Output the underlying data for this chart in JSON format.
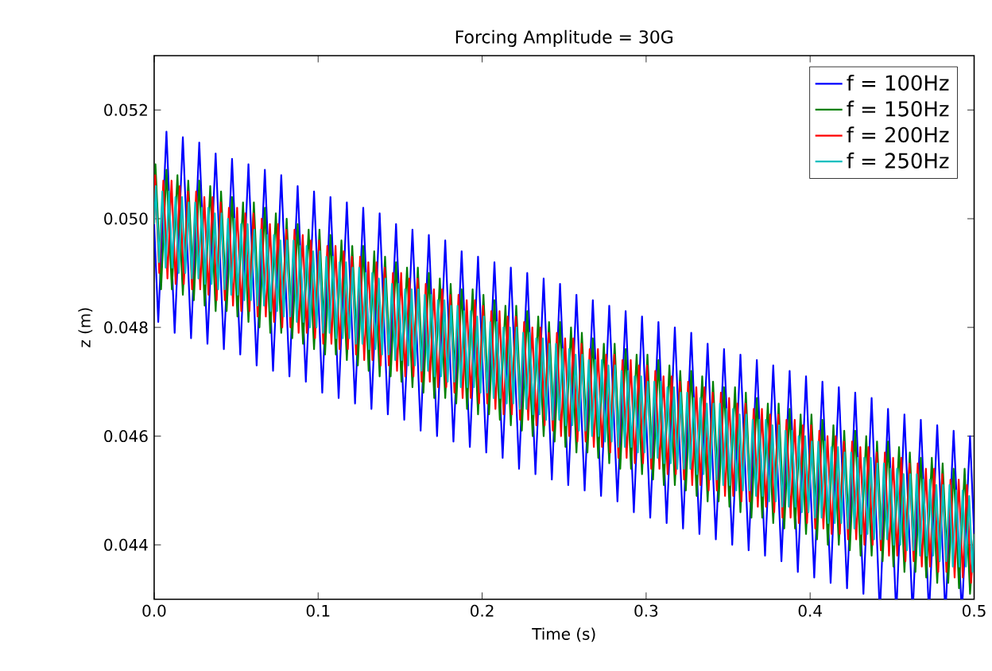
{
  "chart_data": {
    "type": "line",
    "title": "Forcing Amplitude = 30G",
    "xlabel": "Time (s)",
    "ylabel": "z (m)",
    "xlim": [
      0,
      0.5
    ],
    "ylim": [
      0.043,
      0.053
    ],
    "xticks": [
      {
        "value": 0,
        "label": "0.0"
      },
      {
        "value": 0.1,
        "label": "0.1"
      },
      {
        "value": 0.2,
        "label": "0.2"
      },
      {
        "value": 0.3,
        "label": "0.3"
      },
      {
        "value": 0.4,
        "label": "0.4"
      },
      {
        "value": 0.5,
        "label": "0.5"
      }
    ],
    "yticks": [
      {
        "value": 0.044,
        "label": "0.044"
      },
      {
        "value": 0.046,
        "label": "0.046"
      },
      {
        "value": 0.048,
        "label": "0.048"
      },
      {
        "value": 0.05,
        "label": "0.050"
      },
      {
        "value": 0.052,
        "label": "0.052"
      }
    ],
    "legend": "top right",
    "marker": "none",
    "line_style": "solid",
    "series": [
      {
        "name": "f = 100Hz",
        "color": "#0000ff",
        "x": [
          0,
          0.0025,
          0.0075,
          0.0125,
          0.0175,
          0.0225,
          0.0275,
          0.0325,
          0.0375,
          0.0425,
          0.0475,
          0.0525,
          0.0575,
          0.0625,
          0.0675,
          0.0725,
          0.0775,
          0.0825,
          0.0875,
          0.0925,
          0.0975,
          0.1025,
          0.1075,
          0.1125,
          0.1175,
          0.1225,
          0.1275,
          0.1325,
          0.1375,
          0.1425,
          0.1475,
          0.1525,
          0.1575,
          0.1625,
          0.1675,
          0.1725,
          0.1775,
          0.1825,
          0.1875,
          0.1925,
          0.1975,
          0.2025,
          0.2075,
          0.2125,
          0.2175,
          0.2225,
          0.2275,
          0.2325,
          0.2375,
          0.2425,
          0.2475,
          0.2525,
          0.2575,
          0.2625,
          0.2675,
          0.2725,
          0.2775,
          0.2825,
          0.2875,
          0.2925,
          0.2975,
          0.3025,
          0.3075,
          0.3125,
          0.3175,
          0.3225,
          0.3275,
          0.3325,
          0.3375,
          0.3425,
          0.3475,
          0.3525,
          0.3575,
          0.3625,
          0.3675,
          0.3725,
          0.3775,
          0.3825,
          0.3875,
          0.3925,
          0.3975,
          0.4025,
          0.4075,
          0.4125,
          0.4175,
          0.4225,
          0.4275,
          0.4325,
          0.4375,
          0.4425,
          0.4475,
          0.4525,
          0.4575,
          0.4625,
          0.4675,
          0.4725,
          0.4775,
          0.4825,
          0.4875,
          0.4925,
          0.4975,
          0.5
        ],
        "values": [
          0.0499,
          0.0481,
          0.0516,
          0.0479,
          0.0515,
          0.0478,
          0.0514,
          0.0477,
          0.0512,
          0.0476,
          0.0511,
          0.0475,
          0.051,
          0.0473,
          0.0509,
          0.0472,
          0.0508,
          0.0471,
          0.0506,
          0.047,
          0.0505,
          0.0468,
          0.0504,
          0.0467,
          0.0503,
          0.0466,
          0.0502,
          0.0465,
          0.0501,
          0.0464,
          0.0499,
          0.0463,
          0.0498,
          0.0461,
          0.0497,
          0.046,
          0.0496,
          0.0459,
          0.0494,
          0.0458,
          0.0493,
          0.0457,
          0.0492,
          0.0456,
          0.0491,
          0.0454,
          0.049,
          0.0453,
          0.0489,
          0.0452,
          0.0488,
          0.0451,
          0.0486,
          0.045,
          0.0485,
          0.0449,
          0.0484,
          0.0448,
          0.0483,
          0.0446,
          0.0482,
          0.0445,
          0.0481,
          0.0444,
          0.048,
          0.0443,
          0.0479,
          0.0442,
          0.0477,
          0.0441,
          0.0476,
          0.044,
          0.0475,
          0.0439,
          0.0474,
          0.0438,
          0.0473,
          0.0437,
          0.0472,
          0.0435,
          0.0471,
          0.0434,
          0.047,
          0.0433,
          0.0469,
          0.0432,
          0.0468,
          0.0431,
          0.0467,
          null,
          0.0465,
          null,
          0.0464,
          null,
          0.0463,
          null,
          0.0462,
          null,
          0.0461,
          null,
          0.046,
          0.0442
        ]
      },
      {
        "name": "f = 150Hz",
        "color": "#008000",
        "x": [
          0,
          0.0008,
          0.0042,
          0.0075,
          0.0108,
          0.0142,
          0.0175,
          0.0208,
          0.0242,
          0.0275,
          0.0308,
          0.0342,
          0.0375,
          0.0408,
          0.0442,
          0.0475,
          0.0508,
          0.0542,
          0.0575,
          0.0608,
          0.0642,
          0.0675,
          0.0708,
          0.0742,
          0.0775,
          0.0808,
          0.0842,
          0.0875,
          0.0908,
          0.0942,
          0.0975,
          0.1008,
          0.1042,
          0.1075,
          0.1108,
          0.1142,
          0.1175,
          0.1208,
          0.1242,
          0.1275,
          0.1308,
          0.1342,
          0.1375,
          0.1408,
          0.1442,
          0.1475,
          0.1508,
          0.1542,
          0.1575,
          0.1608,
          0.1642,
          0.1675,
          0.1708,
          0.1742,
          0.1775,
          0.1808,
          0.1842,
          0.1875,
          0.1908,
          0.1942,
          0.1975,
          0.2008,
          0.2042,
          0.2075,
          0.2108,
          0.2142,
          0.2175,
          0.2208,
          0.2242,
          0.2275,
          0.2308,
          0.2342,
          0.2375,
          0.2408,
          0.2442,
          0.2475,
          0.2508,
          0.2542,
          0.2575,
          0.2608,
          0.2642,
          0.2675,
          0.2708,
          0.2742,
          0.2775,
          0.2808,
          0.2842,
          0.2875,
          0.2908,
          0.2942,
          0.2975,
          0.3008,
          0.3042,
          0.3075,
          0.3108,
          0.3142,
          0.3175,
          0.3208,
          0.3242,
          0.3275,
          0.3308,
          0.3342,
          0.3375,
          0.3408,
          0.3442,
          0.3475,
          0.3508,
          0.3542,
          0.3575,
          0.3608,
          0.3642,
          0.3675,
          0.3708,
          0.3742,
          0.3775,
          0.3808,
          0.3842,
          0.3875,
          0.3908,
          0.3942,
          0.3975,
          0.4008,
          0.4042,
          0.4075,
          0.4108,
          0.4142,
          0.4175,
          0.4208,
          0.4242,
          0.4275,
          0.4308,
          0.4342,
          0.4375,
          0.4408,
          0.4442,
          0.4475,
          0.4508,
          0.4542,
          0.4575,
          0.4608,
          0.4642,
          0.4675,
          0.4708,
          0.4742,
          0.4775,
          0.4808,
          0.4842,
          0.4875,
          0.4908,
          0.4942,
          0.4975,
          0.5
        ],
        "values": [
          0.0499,
          0.051,
          0.0487,
          0.0509,
          0.0487,
          0.0508,
          0.0486,
          0.0507,
          0.0485,
          0.0507,
          0.0484,
          0.0506,
          0.0483,
          0.0505,
          0.0483,
          0.0504,
          0.0482,
          0.0503,
          0.0481,
          0.0503,
          0.048,
          0.0502,
          0.0479,
          0.0501,
          0.0479,
          0.05,
          0.0478,
          0.0499,
          0.0477,
          0.0498,
          0.0476,
          0.0498,
          0.0475,
          0.0497,
          0.0475,
          0.0496,
          0.0474,
          0.0495,
          0.0473,
          0.0495,
          0.0472,
          0.0494,
          0.0471,
          0.0493,
          0.0471,
          0.0492,
          0.047,
          0.0491,
          0.0469,
          0.0491,
          0.0468,
          0.049,
          0.0467,
          0.0489,
          0.0467,
          0.0488,
          0.0466,
          0.0487,
          0.0465,
          0.0487,
          0.0464,
          0.0486,
          0.0464,
          0.0485,
          0.0463,
          0.0484,
          0.0462,
          0.0484,
          0.0461,
          0.0483,
          0.046,
          0.0482,
          0.046,
          0.0481,
          0.0459,
          0.0481,
          0.0458,
          0.048,
          0.0457,
          0.0479,
          0.0457,
          0.0478,
          0.0456,
          0.0477,
          0.0455,
          0.0477,
          0.0454,
          0.0476,
          0.0454,
          0.0475,
          0.0453,
          0.0475,
          0.0452,
          0.0474,
          0.0451,
          0.0473,
          0.0451,
          0.0472,
          0.045,
          0.0472,
          0.0449,
          0.0471,
          0.0448,
          0.047,
          0.0448,
          0.0469,
          0.0447,
          0.0469,
          0.0446,
          0.0468,
          0.0445,
          0.0467,
          0.0445,
          0.0466,
          0.0444,
          0.0466,
          0.0443,
          0.0465,
          0.0443,
          0.0464,
          0.0442,
          0.0464,
          0.0441,
          0.0463,
          0.044,
          0.0462,
          0.044,
          0.0461,
          0.0439,
          0.0461,
          0.0438,
          0.046,
          0.0438,
          0.0459,
          0.0437,
          0.0459,
          0.0436,
          0.0458,
          0.0435,
          0.0457,
          0.0435,
          0.0456,
          0.0434,
          0.0456,
          0.0433,
          0.0455,
          0.0433,
          0.0454,
          0.0432,
          0.0454,
          0.0431,
          0.0442
        ]
      },
      {
        "name": "f = 200Hz",
        "color": "#ff0000",
        "x": [
          0,
          0.0006,
          0.0031,
          0.0056,
          0.0081,
          0.0106,
          0.0131,
          0.0156,
          0.0181,
          0.0206,
          0.0231,
          0.0256,
          0.0281,
          0.0306,
          0.0331,
          0.0356,
          0.0381,
          0.0406,
          0.0431,
          0.0456,
          0.0481,
          0.0506,
          0.0531,
          0.0556,
          0.0581,
          0.0606,
          0.0631,
          0.0656,
          0.0681,
          0.0706,
          0.0731,
          0.0756,
          0.0781,
          0.0806,
          0.0831,
          0.0856,
          0.0881,
          0.0906,
          0.0931,
          0.0956,
          0.0981,
          0.1006,
          0.1031,
          0.1056,
          0.1081,
          0.1106,
          0.1131,
          0.1156,
          0.1181,
          0.1206,
          0.1231,
          0.1256,
          0.1281,
          0.1306,
          0.1331,
          0.1356,
          0.1381,
          0.1406,
          0.1431,
          0.1456,
          0.1481,
          0.1506,
          0.1531,
          0.1556,
          0.1581,
          0.1606,
          0.1631,
          0.1656,
          0.1681,
          0.1706,
          0.1731,
          0.1756,
          0.1781,
          0.1806,
          0.1831,
          0.1856,
          0.1881,
          0.1906,
          0.1931,
          0.1956,
          0.1981,
          0.2006,
          0.2031,
          0.2056,
          0.2081,
          0.2106,
          0.2131,
          0.2156,
          0.2181,
          0.2206,
          0.2231,
          0.2256,
          0.2281,
          0.2306,
          0.2331,
          0.2356,
          0.2381,
          0.2406,
          0.2431,
          0.2456,
          0.2481,
          0.2506,
          0.2531,
          0.2556,
          0.2581,
          0.2606,
          0.2631,
          0.2656,
          0.2681,
          0.2706,
          0.2731,
          0.2756,
          0.2781,
          0.2806,
          0.2831,
          0.2856,
          0.2881,
          0.2906,
          0.2931,
          0.2956,
          0.2981,
          0.3006,
          0.3031,
          0.3056,
          0.3081,
          0.3106,
          0.3131,
          0.3156,
          0.3181,
          0.3206,
          0.3231,
          0.3256,
          0.3281,
          0.3306,
          0.3331,
          0.3356,
          0.3381,
          0.3406,
          0.3431,
          0.3456,
          0.3481,
          0.3506,
          0.3531,
          0.3556,
          0.3581,
          0.3606,
          0.3631,
          0.3656,
          0.3681,
          0.3706,
          0.3731,
          0.3756,
          0.3781,
          0.3806,
          0.3831,
          0.3856,
          0.3881,
          0.3906,
          0.3931,
          0.3956,
          0.3981,
          0.4006,
          0.4031,
          0.4056,
          0.4081,
          0.4106,
          0.4131,
          0.4156,
          0.4181,
          0.4206,
          0.4231,
          0.4256,
          0.4281,
          0.4306,
          0.4331,
          0.4356,
          0.4381,
          0.4406,
          0.4431,
          0.4456,
          0.4481,
          0.4506,
          0.4531,
          0.4556,
          0.4581,
          0.4606,
          0.4631,
          0.4656,
          0.4681,
          0.4706,
          0.4731,
          0.4756,
          0.4781,
          0.4806,
          0.4831,
          0.4856,
          0.4881,
          0.4906,
          0.4931,
          0.4956,
          0.4981,
          0.5
        ],
        "values": [
          0.0499,
          0.0508,
          0.049,
          0.0507,
          0.0489,
          0.0507,
          0.0488,
          0.0506,
          0.0488,
          0.0505,
          0.0487,
          0.0505,
          0.0487,
          0.0504,
          0.0486,
          0.0504,
          0.0485,
          0.0503,
          0.0485,
          0.0502,
          0.0484,
          0.0502,
          0.0483,
          0.0501,
          0.0483,
          0.0501,
          0.0482,
          0.05,
          0.0482,
          0.0499,
          0.0481,
          0.0499,
          0.048,
          0.0498,
          0.048,
          0.0498,
          0.0479,
          0.0497,
          0.0479,
          0.0496,
          0.0478,
          0.0496,
          0.0477,
          0.0495,
          0.0477,
          0.0495,
          0.0476,
          0.0494,
          0.0476,
          0.0493,
          0.0475,
          0.0493,
          0.0474,
          0.0492,
          0.0474,
          0.0492,
          0.0473,
          0.0491,
          0.0473,
          0.049,
          0.0472,
          0.049,
          0.0471,
          0.0489,
          0.0471,
          0.0489,
          0.047,
          0.0488,
          0.047,
          0.0487,
          0.0469,
          0.0487,
          0.0469,
          0.0486,
          0.0468,
          0.0486,
          0.0467,
          0.0485,
          0.0467,
          0.0485,
          0.0466,
          0.0484,
          0.0466,
          0.0483,
          0.0465,
          0.0483,
          0.0464,
          0.0482,
          0.0464,
          0.0482,
          0.0463,
          0.0481,
          0.0463,
          0.048,
          0.0462,
          0.048,
          0.0462,
          0.0479,
          0.0461,
          0.0479,
          0.046,
          0.0478,
          0.046,
          0.0478,
          0.0459,
          0.0477,
          0.0459,
          0.0476,
          0.0458,
          0.0476,
          0.0458,
          0.0475,
          0.0457,
          0.0475,
          0.0456,
          0.0474,
          0.0456,
          0.0474,
          0.0455,
          0.0473,
          0.0455,
          0.0473,
          0.0454,
          0.0472,
          0.0454,
          0.0471,
          0.0453,
          0.0471,
          0.0453,
          0.047,
          0.0452,
          0.047,
          0.0451,
          0.0469,
          0.0451,
          0.0469,
          0.045,
          0.0468,
          0.045,
          0.0468,
          0.0449,
          0.0467,
          0.0449,
          0.0466,
          0.0448,
          0.0466,
          0.0448,
          0.0465,
          0.0447,
          0.0465,
          0.0447,
          0.0464,
          0.0446,
          0.0464,
          0.0445,
          0.0463,
          0.0445,
          0.0463,
          0.0444,
          0.0462,
          0.0444,
          0.0462,
          0.0443,
          0.0461,
          0.0443,
          0.046,
          0.0442,
          0.046,
          0.0442,
          0.0459,
          0.0441,
          0.0459,
          0.0441,
          0.0458,
          0.044,
          0.0458,
          0.044,
          0.0457,
          0.0439,
          0.0457,
          0.0438,
          0.0456,
          0.0438,
          0.0456,
          0.0437,
          0.0455,
          0.0437,
          0.0455,
          0.0436,
          0.0454,
          0.0436,
          0.0454,
          0.0435,
          0.0453,
          0.0435,
          0.0452,
          0.0434,
          0.0452,
          0.0434,
          0.0451,
          0.0433,
          0.0442
        ]
      },
      {
        "name": "f = 250Hz",
        "color": "#00bfbf",
        "x": [
          0,
          0.001,
          0.003,
          0.005,
          0.007,
          0.009,
          0.011,
          0.013,
          0.015,
          0.017,
          0.019,
          0.021,
          0.023,
          0.025,
          0.027,
          0.029,
          0.031,
          0.033,
          0.035,
          0.037,
          0.039,
          0.041,
          0.043,
          0.045,
          0.047,
          0.049,
          0.051,
          0.053,
          0.055,
          0.057,
          0.059,
          0.061,
          0.063,
          0.065,
          0.067,
          0.069,
          0.071,
          0.073,
          0.075,
          0.077,
          0.079,
          0.081,
          0.083,
          0.085,
          0.087,
          0.089,
          0.091,
          0.093,
          0.095,
          0.097,
          0.099,
          0.101,
          0.103,
          0.105,
          0.107,
          0.109,
          0.111,
          0.113,
          0.115,
          0.117,
          0.119,
          0.121,
          0.123,
          0.125,
          0.127,
          0.129,
          0.131,
          0.133,
          0.135,
          0.137,
          0.139,
          0.141,
          0.143,
          0.145,
          0.147,
          0.149,
          0.151,
          0.153,
          0.155,
          0.157,
          0.159,
          0.161,
          0.163,
          0.165,
          0.167,
          0.169,
          0.171,
          0.173,
          0.175,
          0.177,
          0.179,
          0.181,
          0.183,
          0.185,
          0.187,
          0.189,
          0.191,
          0.193,
          0.195,
          0.197,
          0.199,
          0.201,
          0.203,
          0.205,
          0.207,
          0.209,
          0.211,
          0.213,
          0.215,
          0.217,
          0.219,
          0.221,
          0.223,
          0.225,
          0.227,
          0.229,
          0.231,
          0.233,
          0.235,
          0.237,
          0.239,
          0.241,
          0.243,
          0.245,
          0.247,
          0.249,
          0.251,
          0.253,
          0.255,
          0.257,
          0.259,
          0.261,
          0.263,
          0.265,
          0.267,
          0.269,
          0.271,
          0.273,
          0.275,
          0.277,
          0.279,
          0.281,
          0.283,
          0.285,
          0.287,
          0.289,
          0.291,
          0.293,
          0.295,
          0.297,
          0.299,
          0.301,
          0.303,
          0.305,
          0.307,
          0.309,
          0.311,
          0.313,
          0.315,
          0.317,
          0.319,
          0.321,
          0.323,
          0.325,
          0.327,
          0.329,
          0.331,
          0.333,
          0.335,
          0.337,
          0.339,
          0.341,
          0.343,
          0.345,
          0.347,
          0.349,
          0.351,
          0.353,
          0.355,
          0.357,
          0.359,
          0.361,
          0.363,
          0.365,
          0.367,
          0.369,
          0.371,
          0.373,
          0.375,
          0.377,
          0.379,
          0.381,
          0.383,
          0.385,
          0.387,
          0.389,
          0.391,
          0.393,
          0.395,
          0.397,
          0.399,
          0.401,
          0.403,
          0.405,
          0.407,
          0.409,
          0.411,
          0.413,
          0.415,
          0.417,
          0.419,
          0.421,
          0.423,
          0.425,
          0.427,
          0.429,
          0.431,
          0.433,
          0.435,
          0.437,
          0.439,
          0.441,
          0.443,
          0.445,
          0.447,
          0.449,
          0.451,
          0.453,
          0.455,
          0.457,
          0.459,
          0.461,
          0.463,
          0.465,
          0.467,
          0.469,
          0.471,
          0.473,
          0.475,
          0.477,
          0.479,
          0.481,
          0.483,
          0.485,
          0.487,
          0.489,
          0.491,
          0.493,
          0.495,
          0.497,
          0.499,
          0.5
        ],
        "values": [
          0.0499,
          0.0506,
          0.0492,
          0.0505,
          0.0491,
          0.0505,
          0.0491,
          0.0504,
          0.049,
          0.0504,
          0.049,
          0.0503,
          0.0489,
          0.0503,
          0.0489,
          0.0502,
          0.0488,
          0.0502,
          0.0488,
          0.0501,
          0.0487,
          0.0501,
          0.0487,
          0.05,
          0.0486,
          0.05,
          0.0486,
          0.0499,
          0.0485,
          0.0499,
          0.0485,
          0.0498,
          0.0484,
          0.0498,
          0.0484,
          0.0497,
          0.0483,
          0.0497,
          0.0483,
          0.0496,
          0.0482,
          0.0496,
          0.0482,
          0.0496,
          0.0481,
          0.0495,
          0.0481,
          0.0495,
          0.048,
          0.0494,
          0.048,
          0.0494,
          0.0479,
          0.0493,
          0.0479,
          0.0493,
          0.0478,
          0.0492,
          0.0478,
          0.0492,
          0.0478,
          0.0491,
          0.0477,
          0.0491,
          0.0477,
          0.049,
          0.0476,
          0.049,
          0.0476,
          0.0489,
          0.0475,
          0.0489,
          0.0475,
          0.0488,
          0.0474,
          0.0488,
          0.0474,
          0.0487,
          0.0473,
          0.0487,
          0.0473,
          0.0487,
          0.0472,
          0.0486,
          0.0472,
          0.0486,
          0.0471,
          0.0485,
          0.0471,
          0.0485,
          0.047,
          0.0484,
          0.047,
          0.0484,
          0.0469,
          0.0483,
          0.0469,
          0.0483,
          0.0469,
          0.0482,
          0.0468,
          0.0482,
          0.0468,
          0.0481,
          0.0467,
          0.0481,
          0.0467,
          0.048,
          0.0466,
          0.048,
          0.0466,
          0.048,
          0.0465,
          0.0479,
          0.0465,
          0.0479,
          0.0464,
          0.0478,
          0.0464,
          0.0478,
          0.0463,
          0.0477,
          0.0463,
          0.0477,
          0.0463,
          0.0476,
          0.0462,
          0.0476,
          0.0462,
          0.0475,
          0.0461,
          0.0475,
          0.0461,
          0.0474,
          0.046,
          0.0474,
          0.046,
          0.0474,
          0.0459,
          0.0473,
          0.0459,
          0.0473,
          0.0458,
          0.0472,
          0.0458,
          0.0472,
          0.0458,
          0.0471,
          0.0457,
          0.0471,
          0.0457,
          0.047,
          0.0456,
          0.047,
          0.0456,
          0.047,
          0.0455,
          0.0469,
          0.0455,
          0.0469,
          0.0454,
          0.0468,
          0.0454,
          0.0468,
          0.0454,
          0.0467,
          0.0453,
          0.0467,
          0.0453,
          0.0466,
          0.0452,
          0.0466,
          0.0452,
          0.0466,
          0.0451,
          0.0465,
          0.0451,
          0.0465,
          0.045,
          0.0464,
          0.045,
          0.0464,
          0.045,
          0.0463,
          0.0449,
          0.0463,
          0.0449,
          0.0463,
          0.0448,
          0.0462,
          0.0448,
          0.0462,
          0.0447,
          0.0461,
          0.0447,
          0.0461,
          0.0447,
          0.046,
          0.0446,
          0.046,
          0.0446,
          0.0459,
          0.0445,
          0.0459,
          0.0445,
          0.0459,
          0.0444,
          0.0458,
          0.0444,
          0.0458,
          0.0444,
          0.0457,
          0.0443,
          0.0457,
          0.0443,
          0.0456,
          0.0442,
          0.0456,
          0.0442,
          0.0456,
          0.0441,
          0.0455,
          0.0441,
          0.0455,
          0.0441,
          0.0454,
          0.044,
          0.0454,
          0.044,
          0.0453,
          0.0439,
          0.0453,
          0.0439,
          0.0453,
          0.0438,
          0.0452,
          0.0438,
          0.0452,
          0.0438,
          0.0451,
          0.0437,
          0.0451,
          0.0437,
          0.0451,
          0.0436,
          0.045,
          0.0436,
          0.045,
          0.0436,
          0.0449,
          0.0435,
          0.0442
        ]
      }
    ]
  }
}
